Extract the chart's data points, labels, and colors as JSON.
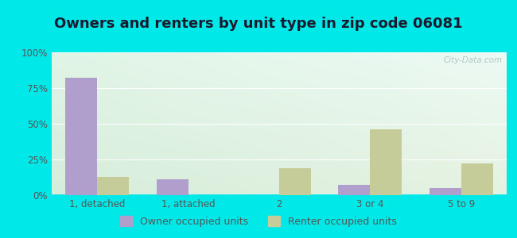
{
  "title": "Owners and renters by unit type in zip code 06081",
  "categories": [
    "1, detached",
    "1, attached",
    "2",
    "3 or 4",
    "5 to 9"
  ],
  "owner_values": [
    82,
    11,
    0,
    7,
    5
  ],
  "renter_values": [
    13,
    0,
    19,
    46,
    22
  ],
  "owner_color": "#b09fcc",
  "renter_color": "#c5cc99",
  "background_outer": "#00e8e8",
  "background_inner_topleft": "#d6eed6",
  "background_inner_topright": "#e8f8f8",
  "background_inner_bottom": "#e8f0d8",
  "ylim": [
    0,
    100
  ],
  "yticks": [
    0,
    25,
    50,
    75,
    100
  ],
  "ytick_labels": [
    "0%",
    "25%",
    "50%",
    "75%",
    "100%"
  ],
  "legend_owner": "Owner occupied units",
  "legend_renter": "Renter occupied units",
  "title_fontsize": 13,
  "tick_fontsize": 8.5,
  "legend_fontsize": 9,
  "bar_width": 0.35,
  "title_color": "#1a1a2e",
  "tick_color": "#555555",
  "watermark_color": "#b0c8c8"
}
